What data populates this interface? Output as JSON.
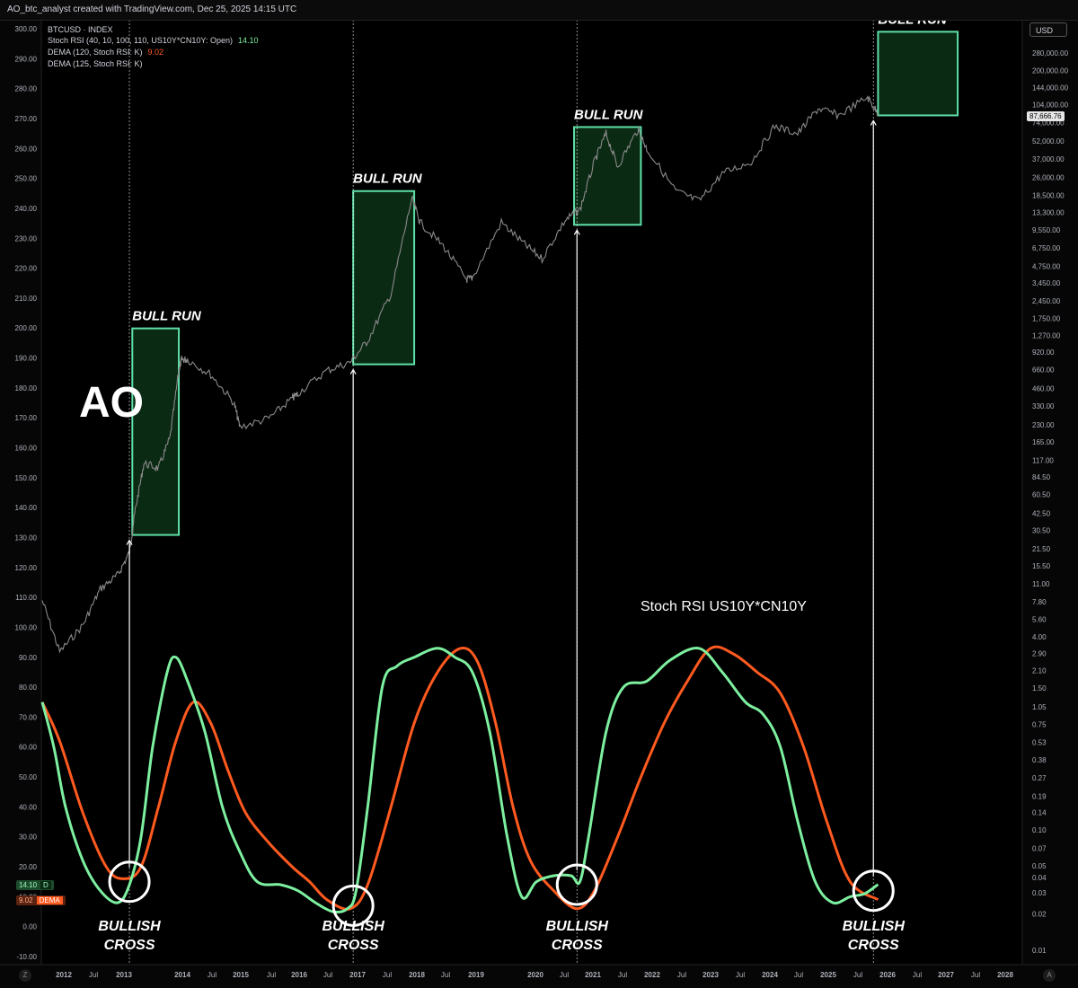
{
  "header": {
    "attribution": "AO_btc_analyst created with TradingView.com, Dec 25, 2025 14:15 UTC"
  },
  "legend": {
    "symbol": "BTCUSD · INDEX",
    "stoch_label": "Stoch RSI (40, 10, 100, 110, US10Y*CN10Y: Open)",
    "stoch_value": "14.10",
    "dema120_label": "DEMA (120, Stoch RSI: K)",
    "dema120_value": "9.02",
    "dema125_label": "DEMA (125, Stoch RSI: K)"
  },
  "currency_button": "USD",
  "price_tag": "87,666.76",
  "left_tags": {
    "stoch": {
      "value": "14.10",
      "name": "D"
    },
    "dema": {
      "value": "9.02",
      "name": "DEMA"
    }
  },
  "annotations": {
    "logo": "AO",
    "indicator_caption": "Stoch RSI US10Y*CN10Y",
    "bull_run": "BULL RUN",
    "bullish": "BULLISH",
    "cross": "CROSS"
  },
  "corner_left": "Z",
  "corner_right": "A",
  "colors": {
    "background": "#000000",
    "price_line": "#8a8a8a",
    "stoch_line": "#7df0a0",
    "dema_line": "#ff5a1f",
    "bull_box_fill": "#0b2a14",
    "bull_box_stroke": "#5ee0a8",
    "white": "#ffffff"
  },
  "chart_data": {
    "type": "line",
    "title": "",
    "x_axis": {
      "type": "time",
      "tick_labels": [
        "2012",
        "Jul",
        "2013",
        "2014",
        "Jul",
        "2015",
        "Jul",
        "2016",
        "Jul",
        "2017",
        "Jul",
        "2018",
        "Jul",
        "2019",
        "2020",
        "Jul",
        "2021",
        "Jul",
        "2022",
        "Jul",
        "2023",
        "Jul",
        "2024",
        "Jul",
        "2025",
        "Jul",
        "2026",
        "Jul",
        "2027",
        "Jul",
        "2028"
      ]
    },
    "left_axis": {
      "label": "",
      "range": [
        -10,
        300
      ],
      "tick_labels": [
        "300.00",
        "290.00",
        "280.00",
        "270.00",
        "260.00",
        "250.00",
        "240.00",
        "230.00",
        "220.00",
        "210.00",
        "200.00",
        "190.00",
        "180.00",
        "170.00",
        "160.00",
        "150.00",
        "140.00",
        "130.00",
        "120.00",
        "110.00",
        "100.00",
        "90.00",
        "80.00",
        "70.00",
        "60.00",
        "50.00",
        "40.00",
        "30.00",
        "20.00",
        "10.00",
        "0.00",
        "-10.00"
      ]
    },
    "right_axis": {
      "label": "",
      "scale": "log",
      "currency": "USD",
      "tick_labels": [
        "280,000.00",
        "200,000.00",
        "144,000.00",
        "104,000.00",
        "74,000.00",
        "52,000.00",
        "37,000.00",
        "26,000.00",
        "18,500.00",
        "13,300.00",
        "9,550.00",
        "6,750.00",
        "4,750.00",
        "3,450.00",
        "2,450.00",
        "1,750.00",
        "1,270.00",
        "920.00",
        "660.00",
        "460.00",
        "330.00",
        "230.00",
        "165.00",
        "117.00",
        "84.50",
        "60.50",
        "42.50",
        "30.50",
        "21.50",
        "15.50",
        "11.00",
        "7.80",
        "5.60",
        "4.00",
        "2.90",
        "2.10",
        "1.50",
        "1.05",
        "0.75",
        "0.53",
        "0.38",
        "0.27",
        "0.19",
        "0.14",
        "0.10",
        "0.07",
        "0.05",
        "0.04",
        "0.03",
        "0.02",
        "0.01"
      ]
    },
    "series": [
      {
        "name": "BTCUSD · INDEX",
        "axis": "right",
        "role": "price",
        "points": [
          [
            2011.6,
            8
          ],
          [
            2011.9,
            3
          ],
          [
            2012.3,
            5
          ],
          [
            2012.6,
            10
          ],
          [
            2012.9,
            13
          ],
          [
            2013.1,
            20
          ],
          [
            2013.2,
            45
          ],
          [
            2013.35,
            110
          ],
          [
            2013.6,
            100
          ],
          [
            2013.8,
            180
          ],
          [
            2013.95,
            650
          ],
          [
            2014.0,
            800
          ],
          [
            2014.1,
            800
          ],
          [
            2014.5,
            600
          ],
          [
            2014.9,
            350
          ],
          [
            2015.0,
            220
          ],
          [
            2015.5,
            260
          ],
          [
            2015.9,
            380
          ],
          [
            2016.0,
            420
          ],
          [
            2016.5,
            650
          ],
          [
            2016.9,
            760
          ],
          [
            2017.2,
            1150
          ],
          [
            2017.6,
            2800
          ],
          [
            2017.96,
            17500
          ],
          [
            2018.1,
            11000
          ],
          [
            2018.5,
            7000
          ],
          [
            2018.9,
            3700
          ],
          [
            2019.0,
            3800
          ],
          [
            2019.5,
            11000
          ],
          [
            2019.9,
            7200
          ],
          [
            2020.2,
            5500
          ],
          [
            2020.6,
            11500
          ],
          [
            2020.85,
            14000
          ],
          [
            2021.1,
            35000
          ],
          [
            2021.3,
            60000
          ],
          [
            2021.5,
            32000
          ],
          [
            2021.85,
            65000
          ],
          [
            2022.0,
            45000
          ],
          [
            2022.5,
            20000
          ],
          [
            2022.9,
            16500
          ],
          [
            2023.3,
            28000
          ],
          [
            2023.8,
            35000
          ],
          [
            2024.2,
            69000
          ],
          [
            2024.6,
            60000
          ],
          [
            2024.95,
            97000
          ],
          [
            2025.3,
            85000
          ],
          [
            2025.8,
            120000
          ],
          [
            2025.98,
            87666.76
          ]
        ]
      },
      {
        "name": "Stoch RSI (40, 10, 100, 110, US10Y*CN10Y: Open)",
        "axis": "left",
        "role": "stoch",
        "points": [
          [
            2011.6,
            75
          ],
          [
            2011.8,
            60
          ],
          [
            2012.0,
            40
          ],
          [
            2012.3,
            22
          ],
          [
            2012.6,
            12
          ],
          [
            2012.9,
            8
          ],
          [
            2013.1,
            14
          ],
          [
            2013.3,
            30
          ],
          [
            2013.5,
            60
          ],
          [
            2013.75,
            85
          ],
          [
            2013.9,
            90
          ],
          [
            2014.1,
            82
          ],
          [
            2014.4,
            65
          ],
          [
            2014.7,
            40
          ],
          [
            2015.0,
            25
          ],
          [
            2015.3,
            15
          ],
          [
            2015.7,
            14
          ],
          [
            2016.0,
            12
          ],
          [
            2016.3,
            8
          ],
          [
            2016.6,
            5
          ],
          [
            2016.85,
            6
          ],
          [
            2017.0,
            12
          ],
          [
            2017.2,
            40
          ],
          [
            2017.45,
            80
          ],
          [
            2017.7,
            87
          ],
          [
            2018.0,
            90
          ],
          [
            2018.4,
            93
          ],
          [
            2018.7,
            90
          ],
          [
            2019.0,
            85
          ],
          [
            2019.3,
            65
          ],
          [
            2019.6,
            30
          ],
          [
            2019.85,
            10
          ],
          [
            2020.1,
            15
          ],
          [
            2020.4,
            17
          ],
          [
            2020.7,
            17
          ],
          [
            2020.85,
            15
          ],
          [
            2021.0,
            30
          ],
          [
            2021.3,
            65
          ],
          [
            2021.6,
            80
          ],
          [
            2022.0,
            82
          ],
          [
            2022.4,
            89
          ],
          [
            2022.9,
            93
          ],
          [
            2023.3,
            85
          ],
          [
            2023.7,
            75
          ],
          [
            2024.0,
            71
          ],
          [
            2024.3,
            60
          ],
          [
            2024.6,
            35
          ],
          [
            2024.9,
            15
          ],
          [
            2025.2,
            8
          ],
          [
            2025.5,
            10
          ],
          [
            2025.75,
            11
          ],
          [
            2025.98,
            14.1
          ]
        ]
      },
      {
        "name": "DEMA (120, Stoch RSI: K)",
        "axis": "left",
        "role": "dema",
        "points": [
          [
            2011.6,
            75
          ],
          [
            2011.9,
            62
          ],
          [
            2012.3,
            38
          ],
          [
            2012.7,
            20
          ],
          [
            2013.0,
            16
          ],
          [
            2013.3,
            20
          ],
          [
            2013.6,
            40
          ],
          [
            2013.9,
            62
          ],
          [
            2014.2,
            75
          ],
          [
            2014.5,
            68
          ],
          [
            2014.8,
            52
          ],
          [
            2015.1,
            38
          ],
          [
            2015.5,
            28
          ],
          [
            2015.9,
            20
          ],
          [
            2016.2,
            15
          ],
          [
            2016.5,
            9
          ],
          [
            2016.9,
            6
          ],
          [
            2017.2,
            14
          ],
          [
            2017.6,
            40
          ],
          [
            2018.0,
            68
          ],
          [
            2018.4,
            85
          ],
          [
            2018.8,
            93
          ],
          [
            2019.1,
            88
          ],
          [
            2019.4,
            68
          ],
          [
            2019.7,
            40
          ],
          [
            2020.0,
            22
          ],
          [
            2020.4,
            12
          ],
          [
            2020.8,
            6
          ],
          [
            2021.1,
            12
          ],
          [
            2021.5,
            30
          ],
          [
            2021.9,
            50
          ],
          [
            2022.3,
            68
          ],
          [
            2022.7,
            82
          ],
          [
            2023.1,
            93
          ],
          [
            2023.5,
            91
          ],
          [
            2023.9,
            85
          ],
          [
            2024.3,
            78
          ],
          [
            2024.7,
            60
          ],
          [
            2025.1,
            35
          ],
          [
            2025.5,
            15
          ],
          [
            2025.98,
            9.02
          ]
        ]
      }
    ],
    "bull_run_boxes": [
      {
        "label": "BULL RUN",
        "x_start": 2013.15,
        "x_end": 2013.95,
        "price_low": 28,
        "price_high": 1450
      },
      {
        "label": "BULL RUN",
        "x_start": 2016.95,
        "x_end": 2018.0,
        "price_low": 730,
        "price_high": 20000
      },
      {
        "label": "BULL RUN",
        "x_start": 2020.75,
        "x_end": 2021.9,
        "price_low": 10500,
        "price_high": 68000
      },
      {
        "label": "BULL RUN",
        "x_start": 2025.98,
        "x_end": 2027.35,
        "price_low": 85000,
        "price_high": 420000
      }
    ],
    "bullish_crosses": [
      {
        "label": "BULLISH CROSS",
        "x": 2013.1,
        "value": 15
      },
      {
        "label": "BULLISH CROSS",
        "x": 2016.95,
        "value": 7
      },
      {
        "label": "BULLISH CROSS",
        "x": 2020.8,
        "value": 14
      },
      {
        "label": "BULLISH CROSS",
        "x": 2025.9,
        "value": 12
      }
    ],
    "grid": false,
    "legend_position": "top-left"
  }
}
